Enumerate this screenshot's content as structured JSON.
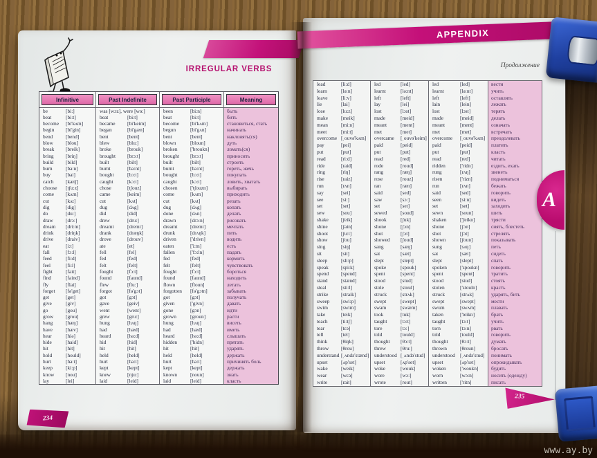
{
  "colors": {
    "accent_magenta": "#c4127a",
    "header_cell_pink": "#e77ab3",
    "meaning_column_pink": "#ecc2dc",
    "page_background": "#eff1f0",
    "clip_blue": "#2c52c0",
    "wood_brown": "#7d5c33"
  },
  "watermark": "www.ay.by",
  "left_page": {
    "title": "IRREGULAR VERBS",
    "page_number": "234",
    "table": {
      "headers": [
        "Infinitive",
        "Past Indefinite",
        "Past Participle",
        "Meaning"
      ],
      "rows": [
        [
          "be",
          "[bi:]",
          "was [wɔz], were [wə:]",
          "",
          "been",
          "[bi:n]",
          "быть"
        ],
        [
          "beat",
          "[bi:t]",
          "beat",
          "[bi:t]",
          "beat",
          "[bi:t]",
          "бить"
        ],
        [
          "become",
          "[bi'kʌm]",
          "became",
          "[bi'keim]",
          "become",
          "[bi'kʌm]",
          "становиться, стать"
        ],
        [
          "begin",
          "[bi'gin]",
          "began",
          "[bi'gæn]",
          "begun",
          "[bi'gʌn]",
          "начинать"
        ],
        [
          "bend",
          "[bend]",
          "bent",
          "[bent]",
          "bent",
          "[bent]",
          "наклонять(ся)"
        ],
        [
          "blow",
          "[blou]",
          "blew",
          "[blu:]",
          "blown",
          "[bloun]",
          "дуть"
        ],
        [
          "break",
          "[breik]",
          "broke",
          "[brouk]",
          "broken",
          "['broukn]",
          "ломать(ся)"
        ],
        [
          "bring",
          "[briŋ]",
          "brought",
          "[brɔ:t]",
          "brought",
          "[brɔ:t]",
          "приносить"
        ],
        [
          "build",
          "[bild]",
          "built",
          "[bilt]",
          "built",
          "[bilt]",
          "строить"
        ],
        [
          "burn",
          "[bə:n]",
          "burnt",
          "[bə:nt]",
          "burnt",
          "[bə:nt]",
          "гореть, жечь"
        ],
        [
          "buy",
          "[bai]",
          "bought",
          "[bɔ:t]",
          "bought",
          "[bɔ:t]",
          "покупать"
        ],
        [
          "catch",
          "[kætʃ]",
          "caught",
          "[kɔ:t]",
          "caught",
          "[kɔ:t]",
          "ловить, хватать"
        ],
        [
          "choose",
          "[tʃu:z]",
          "chose",
          "[tʃouz]",
          "chosen",
          "['tʃouzn]",
          "выбирать"
        ],
        [
          "come",
          "[kʌm]",
          "came",
          "[keim]",
          "come",
          "[kʌm]",
          "приходить"
        ],
        [
          "cut",
          "[kʌt]",
          "cut",
          "[kʌt]",
          "cut",
          "[kʌt]",
          "резать"
        ],
        [
          "dig",
          "[dig]",
          "dug",
          "[dʌg]",
          "dug",
          "[dʌg]",
          "копать"
        ],
        [
          "do",
          "[du:]",
          "did",
          "[did]",
          "done",
          "[dʌn]",
          "делать"
        ],
        [
          "draw",
          "[drɔ:]",
          "drew",
          "[dru:]",
          "drawn",
          "[drɔ:n]",
          "рисовать"
        ],
        [
          "dream",
          "[dri:m]",
          "dreamt",
          "[dremt]",
          "dreamt",
          "[dremt]",
          "мечтать"
        ],
        [
          "drink",
          "[driŋk]",
          "drank",
          "[dræŋk]",
          "drunk",
          "[drʌŋk]",
          "пить"
        ],
        [
          "drive",
          "[draiv]",
          "drove",
          "[drouv]",
          "driven",
          "['drivn]",
          "водить"
        ],
        [
          "eat",
          "[i:t]",
          "ate",
          "[et]",
          "eaten",
          "['i:tn]",
          "есть"
        ],
        [
          "fall",
          "[fɔ:l]",
          "fell",
          "[fel]",
          "fallen",
          "['fɔ:ln]",
          "падать"
        ],
        [
          "feed",
          "[fi:d]",
          "fed",
          "[fed]",
          "fed",
          "[fed]",
          "кормить"
        ],
        [
          "feel",
          "[fi:l]",
          "felt",
          "[felt]",
          "felt",
          "[felt]",
          "чувствовать"
        ],
        [
          "fight",
          "[fait]",
          "fought",
          "[fɔ:t]",
          "fought",
          "[fɔ:t]",
          "бороться"
        ],
        [
          "find",
          "[faind]",
          "found",
          "[faund]",
          "found",
          "[faund]",
          "находить"
        ],
        [
          "fly",
          "[flai]",
          "flew",
          "[flu:]",
          "flown",
          "[floun]",
          "летать"
        ],
        [
          "forget",
          "[fə'get]",
          "forgot",
          "[fə'gɔt]",
          "forgotten",
          "[fə'gɔtn]",
          "забывать"
        ],
        [
          "get",
          "[get]",
          "got",
          "[gɔt]",
          "got",
          "[gɔt]",
          "получать"
        ],
        [
          "give",
          "[giv]",
          "gave",
          "[geiv]",
          "given",
          "['givn]",
          "давать"
        ],
        [
          "go",
          "[gou]",
          "went",
          "[went]",
          "gone",
          "[gɔn]",
          "идти"
        ],
        [
          "grow",
          "[grou]",
          "grew",
          "[gru:]",
          "grown",
          "[groun]",
          "расти"
        ],
        [
          "hang",
          "[hæŋ]",
          "hung",
          "[hʌŋ]",
          "hung",
          "[hʌŋ]",
          "висеть"
        ],
        [
          "have",
          "[hæv]",
          "had",
          "[hæd]",
          "had",
          "[hæd]",
          "иметь"
        ],
        [
          "hear",
          "[hiə]",
          "heard",
          "[hə:d]",
          "heard",
          "[hə:d]",
          "слышать"
        ],
        [
          "hide",
          "[haid]",
          "hid",
          "[hid]",
          "hidden",
          "['hidn]",
          "прятать"
        ],
        [
          "hit",
          "[hit]",
          "hit",
          "[hit]",
          "hit",
          "[hit]",
          "ударять"
        ],
        [
          "hold",
          "[hould]",
          "held",
          "[held]",
          "held",
          "[held]",
          "держать"
        ],
        [
          "hurt",
          "[hə:t]",
          "hurt",
          "[hə:t]",
          "hurt",
          "[hə:t]",
          "причинять боль"
        ],
        [
          "keep",
          "[ki:p]",
          "kept",
          "[kept]",
          "kept",
          "[kept]",
          "держать"
        ],
        [
          "know",
          "[nou]",
          "knew",
          "[nju:]",
          "known",
          "[noun]",
          "знать"
        ],
        [
          "lay",
          "[lei]",
          "laid",
          "[leid]",
          "laid",
          "[leid]",
          "класть"
        ]
      ]
    }
  },
  "right_page": {
    "banner": "APPENDIX",
    "continuation": "Продолжение",
    "side_tab": "A",
    "page_number": "235",
    "table": {
      "rows": [
        [
          "lead",
          "[li:d]",
          "led",
          "[led]",
          "led",
          "[led]",
          "вести"
        ],
        [
          "learn",
          "[lə:n]",
          "learnt",
          "[lə:nt]",
          "learnt",
          "[lə:nt]",
          "учить"
        ],
        [
          "leave",
          "[li:v]",
          "left",
          "[left]",
          "left",
          "[left]",
          "оставлять"
        ],
        [
          "lie",
          "[lai]",
          "lay",
          "[lei]",
          "lain",
          "[lein]",
          "лежать"
        ],
        [
          "lose",
          "[lu:z]",
          "lost",
          "[lɔst]",
          "lost",
          "[lɔst]",
          "терять"
        ],
        [
          "make",
          "[meik]",
          "made",
          "[meid]",
          "made",
          "[meid]",
          "делать"
        ],
        [
          "mean",
          "[mi:n]",
          "meant",
          "[ment]",
          "meant",
          "[ment]",
          "означать"
        ],
        [
          "meet",
          "[mi:t]",
          "met",
          "[met]",
          "met",
          "[met]",
          "встречать"
        ],
        [
          "overcome",
          "[ˌouvə'kʌm]",
          "overcame",
          "[ˌouvə'keim]",
          "overcome",
          "[ˌouvə'kʌm]",
          "преодолевать"
        ],
        [
          "pay",
          "[pei]",
          "paid",
          "[peid]",
          "paid",
          "[peid]",
          "платить"
        ],
        [
          "put",
          "[put]",
          "put",
          "[put]",
          "put",
          "[put]",
          "класть"
        ],
        [
          "read",
          "[ri:d]",
          "read",
          "[red]",
          "read",
          "[red]",
          "читать"
        ],
        [
          "ride",
          "[raid]",
          "rode",
          "[roud]",
          "ridden",
          "['ridn]",
          "ездить, ехать"
        ],
        [
          "ring",
          "[riŋ]",
          "rang",
          "[ræŋ]",
          "rung",
          "[rʌŋ]",
          "звенеть"
        ],
        [
          "rise",
          "[raiz]",
          "rose",
          "[rouz]",
          "risen",
          "['rizn]",
          "подниматься"
        ],
        [
          "run",
          "[rʌn]",
          "ran",
          "[ræn]",
          "run",
          "[rʌn]",
          "бежать"
        ],
        [
          "say",
          "[sei]",
          "said",
          "[sed]",
          "said",
          "[sed]",
          "говорить"
        ],
        [
          "see",
          "[si:]",
          "saw",
          "[sɔ:]",
          "seen",
          "[si:n]",
          "видеть"
        ],
        [
          "set",
          "[set]",
          "set",
          "[set]",
          "set",
          "[set]",
          "заходить"
        ],
        [
          "sew",
          "[sou]",
          "sewed",
          "[soud]",
          "sewn",
          "[soun]",
          "шить"
        ],
        [
          "shake",
          "[ʃeik]",
          "shook",
          "[ʃuk]",
          "shaken",
          "['ʃeikn]",
          "трясти"
        ],
        [
          "shine",
          "[ʃain]",
          "shone",
          "[ʃɔn]",
          "shone",
          "[ʃɔn]",
          "сиять, блестеть"
        ],
        [
          "shoot",
          "[ʃu:t]",
          "shot",
          "[ʃɔt]",
          "shot",
          "[ʃɔt]",
          "стрелять"
        ],
        [
          "show",
          "[ʃou]",
          "showed",
          "[ʃoud]",
          "shown",
          "[ʃoun]",
          "показывать"
        ],
        [
          "sing",
          "[siŋ]",
          "sang",
          "[sæŋ]",
          "sung",
          "[sʌŋ]",
          "петь"
        ],
        [
          "sit",
          "[sit]",
          "sat",
          "[sæt]",
          "sat",
          "[sæt]",
          "сидеть"
        ],
        [
          "sleep",
          "[sli:p]",
          "slept",
          "[slept]",
          "slept",
          "[slept]",
          "спать"
        ],
        [
          "speak",
          "[spi:k]",
          "spoke",
          "[spouk]",
          "spoken",
          "['spoukn]",
          "говорить"
        ],
        [
          "spend",
          "[spend]",
          "spent",
          "[spent]",
          "spent",
          "[spent]",
          "тратить"
        ],
        [
          "stand",
          "[stænd]",
          "stood",
          "[stud]",
          "stood",
          "[stud]",
          "стоять"
        ],
        [
          "steal",
          "[sti:l]",
          "stole",
          "[stoul]",
          "stolen",
          "['stouln]",
          "красть"
        ],
        [
          "strike",
          "[straik]",
          "struck",
          "[strʌk]",
          "struck",
          "[strʌk]",
          "ударять, бить"
        ],
        [
          "sweep",
          "[swi:p]",
          "swept",
          "[swept]",
          "swept",
          "[swept]",
          "мести"
        ],
        [
          "swim",
          "[swim]",
          "swam",
          "[swæm]",
          "swum",
          "[swʌm]",
          "плавать"
        ],
        [
          "take",
          "[teik]",
          "took",
          "[tuk]",
          "taken",
          "['teikn]",
          "брать"
        ],
        [
          "teach",
          "[ti:tʃ]",
          "taught",
          "[tɔ:t]",
          "taught",
          "[tɔ:t]",
          "учить"
        ],
        [
          "tear",
          "[tɛə]",
          "tore",
          "[tɔ:]",
          "torn",
          "[tɔ:n]",
          "рвать"
        ],
        [
          "tell",
          "[tel]",
          "told",
          "[tould]",
          "told",
          "[tould]",
          "говорить"
        ],
        [
          "think",
          "[θiŋk]",
          "thought",
          "[θɔ:t]",
          "thought",
          "[θɔ:t]",
          "думать"
        ],
        [
          "throw",
          "[θrou]",
          "threw",
          "[θru:]",
          "thrown",
          "[θroun]",
          "бросать"
        ],
        [
          "understand",
          "[ˌʌndə'stænd]",
          "understood",
          "[ˌʌndə'stud]",
          "understood",
          "[ˌʌndə'stud]",
          "понимать"
        ],
        [
          "upset",
          "[ʌp'set]",
          "upset",
          "[ʌp'set]",
          "upset",
          "[ʌp'set]",
          "опрокидывать"
        ],
        [
          "wake",
          "[weik]",
          "woke",
          "[wouk]",
          "woken",
          "['woukn]",
          "будить"
        ],
        [
          "wear",
          "[wɛə]",
          "wore",
          "[wɔ:]",
          "worn",
          "[wɔ:n]",
          "носить (одежду)"
        ],
        [
          "write",
          "[rait]",
          "wrote",
          "[rout]",
          "written",
          "['ritn]",
          "писать"
        ]
      ]
    }
  }
}
